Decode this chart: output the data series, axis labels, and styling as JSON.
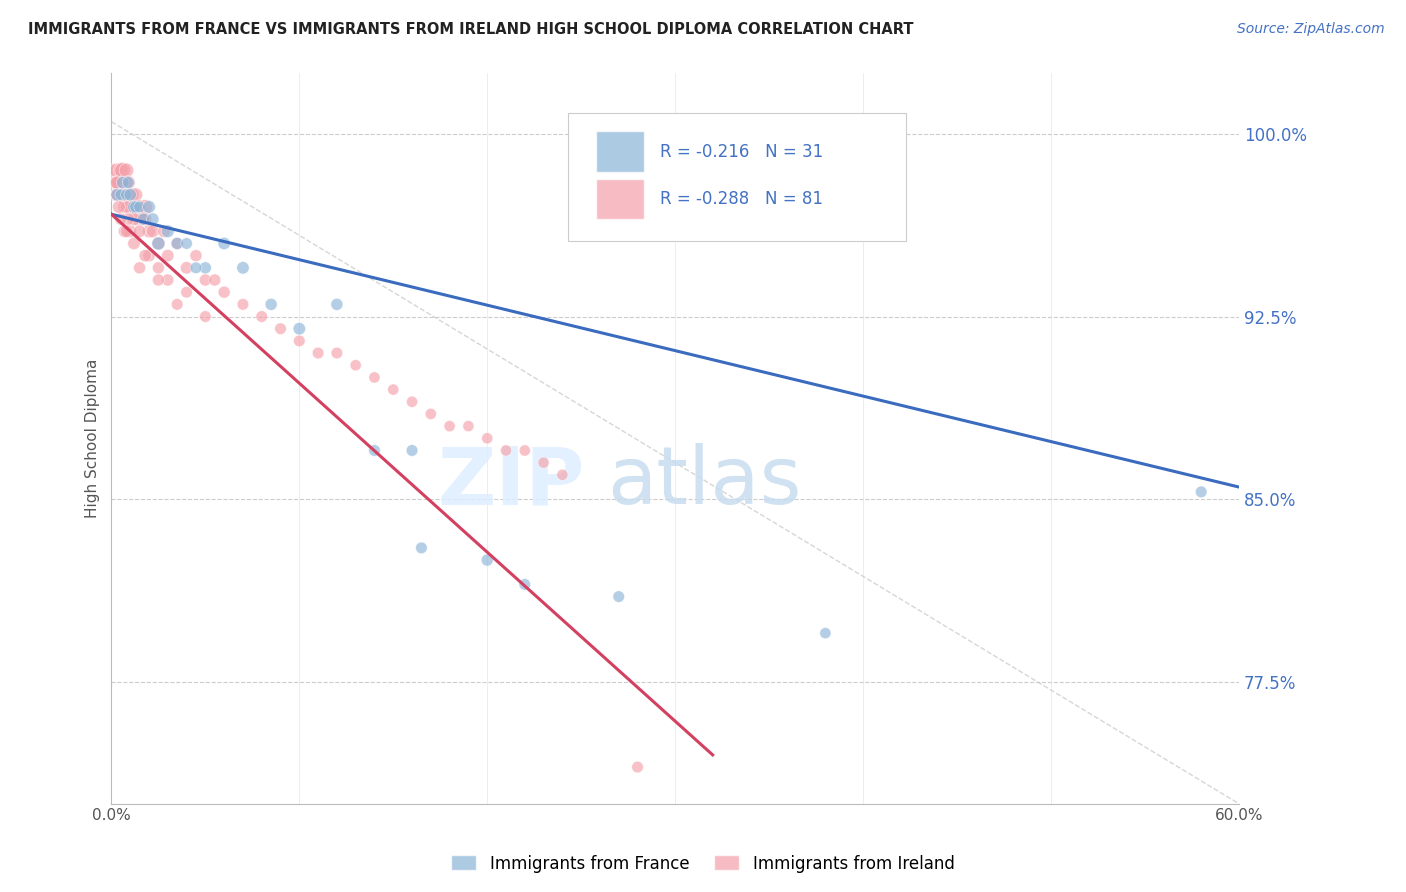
{
  "title": "IMMIGRANTS FROM FRANCE VS IMMIGRANTS FROM IRELAND HIGH SCHOOL DIPLOMA CORRELATION CHART",
  "source": "Source: ZipAtlas.com",
  "ylabel": "High School Diploma",
  "ytick_labels": [
    "100.0%",
    "92.5%",
    "85.0%",
    "77.5%"
  ],
  "ytick_values": [
    1.0,
    0.925,
    0.85,
    0.775
  ],
  "xlim": [
    0.0,
    0.6
  ],
  "ylim": [
    0.725,
    1.025
  ],
  "france_color": "#8ab4d8",
  "ireland_color": "#f4a0aa",
  "france_line_color": "#3a6bbf",
  "ireland_line_color": "#d44060",
  "legend_france_R": "-0.216",
  "legend_france_N": "31",
  "legend_ireland_R": "-0.288",
  "legend_ireland_N": "81",
  "watermark_zip": "ZIP",
  "watermark_atlas": "atlas",
  "france_x": [
    0.003,
    0.005,
    0.006,
    0.008,
    0.009,
    0.01,
    0.012,
    0.013,
    0.015,
    0.017,
    0.02,
    0.022,
    0.025,
    0.03,
    0.035,
    0.04,
    0.05,
    0.06,
    0.07,
    0.085,
    0.1,
    0.12,
    0.14,
    0.16,
    0.2,
    0.22,
    0.27,
    0.38,
    0.58,
    0.045,
    0.165
  ],
  "france_y": [
    0.975,
    0.975,
    0.98,
    0.975,
    0.98,
    0.975,
    0.97,
    0.97,
    0.97,
    0.965,
    0.97,
    0.965,
    0.955,
    0.96,
    0.955,
    0.955,
    0.945,
    0.955,
    0.945,
    0.93,
    0.92,
    0.93,
    0.87,
    0.87,
    0.825,
    0.815,
    0.81,
    0.795,
    0.853,
    0.945,
    0.83
  ],
  "france_sizes": [
    80,
    70,
    80,
    70,
    75,
    80,
    80,
    75,
    70,
    75,
    85,
    80,
    90,
    85,
    75,
    70,
    75,
    80,
    80,
    75,
    80,
    75,
    70,
    70,
    75,
    70,
    70,
    65,
    70,
    70,
    70
  ],
  "ireland_x": [
    0.001,
    0.002,
    0.002,
    0.003,
    0.003,
    0.004,
    0.004,
    0.005,
    0.005,
    0.006,
    0.006,
    0.007,
    0.007,
    0.008,
    0.008,
    0.009,
    0.01,
    0.01,
    0.011,
    0.012,
    0.013,
    0.014,
    0.015,
    0.016,
    0.017,
    0.018,
    0.02,
    0.022,
    0.025,
    0.028,
    0.03,
    0.035,
    0.04,
    0.045,
    0.05,
    0.055,
    0.06,
    0.07,
    0.08,
    0.09,
    0.1,
    0.11,
    0.12,
    0.13,
    0.14,
    0.15,
    0.16,
    0.17,
    0.18,
    0.19,
    0.2,
    0.21,
    0.22,
    0.23,
    0.24,
    0.008,
    0.01,
    0.012,
    0.015,
    0.018,
    0.006,
    0.004,
    0.003,
    0.002,
    0.007,
    0.009,
    0.005,
    0.003,
    0.02,
    0.025,
    0.03,
    0.04,
    0.05,
    0.007,
    0.012,
    0.018,
    0.008,
    0.015,
    0.025,
    0.035,
    0.28
  ],
  "ireland_y": [
    0.985,
    0.98,
    0.975,
    0.985,
    0.975,
    0.98,
    0.975,
    0.985,
    0.975,
    0.985,
    0.975,
    0.98,
    0.97,
    0.985,
    0.975,
    0.98,
    0.975,
    0.97,
    0.975,
    0.97,
    0.975,
    0.965,
    0.97,
    0.965,
    0.965,
    0.97,
    0.96,
    0.96,
    0.955,
    0.96,
    0.95,
    0.955,
    0.945,
    0.95,
    0.94,
    0.94,
    0.935,
    0.93,
    0.925,
    0.92,
    0.915,
    0.91,
    0.91,
    0.905,
    0.9,
    0.895,
    0.89,
    0.885,
    0.88,
    0.88,
    0.875,
    0.87,
    0.87,
    0.865,
    0.86,
    0.97,
    0.96,
    0.965,
    0.96,
    0.965,
    0.975,
    0.97,
    0.975,
    0.98,
    0.975,
    0.965,
    0.965,
    0.98,
    0.95,
    0.945,
    0.94,
    0.935,
    0.925,
    0.96,
    0.955,
    0.95,
    0.96,
    0.945,
    0.94,
    0.93,
    0.74
  ],
  "ireland_sizes": [
    100,
    90,
    85,
    110,
    95,
    105,
    90,
    120,
    85,
    130,
    100,
    115,
    95,
    110,
    90,
    100,
    105,
    90,
    100,
    110,
    95,
    90,
    105,
    95,
    90,
    110,
    90,
    85,
    85,
    85,
    80,
    80,
    80,
    75,
    75,
    75,
    75,
    70,
    70,
    70,
    70,
    70,
    70,
    65,
    65,
    65,
    65,
    65,
    65,
    65,
    65,
    65,
    65,
    65,
    65,
    80,
    85,
    90,
    80,
    85,
    90,
    85,
    80,
    75,
    85,
    80,
    75,
    90,
    80,
    75,
    75,
    70,
    70,
    80,
    80,
    80,
    80,
    75,
    75,
    70,
    70
  ],
  "france_trend_x": [
    0.0,
    0.6
  ],
  "france_trend_y": [
    0.967,
    0.855
  ],
  "ireland_trend_x": [
    0.0,
    0.32
  ],
  "ireland_trend_y": [
    0.967,
    0.745
  ],
  "dashed_line_x": [
    0.0,
    0.6
  ],
  "dashed_line_y": [
    1.005,
    0.725
  ],
  "background_color": "#ffffff",
  "grid_color": "#cccccc",
  "xtick_positions": [
    0.0,
    0.1,
    0.2,
    0.3,
    0.4,
    0.5,
    0.6
  ],
  "xtick_labels": [
    "0.0%",
    "",
    "",
    "",
    "",
    "",
    "60.0%"
  ]
}
